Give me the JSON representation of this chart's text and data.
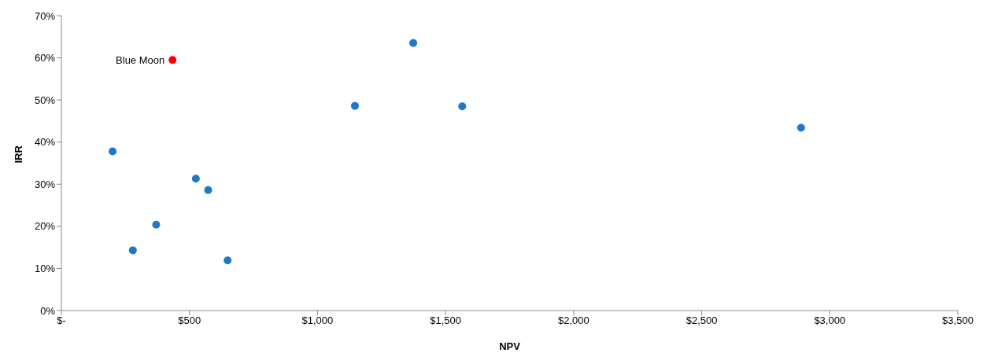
{
  "chart_data": {
    "type": "scatter",
    "xlabel": "NPV",
    "ylabel": "IRR",
    "x": [
      200,
      279,
      370,
      434,
      525,
      573,
      649,
      1146,
      1374,
      1565,
      2888
    ],
    "values": [
      37.8,
      14.3,
      20.4,
      59.5,
      31.3,
      28.6,
      11.9,
      48.6,
      63.5,
      48.5,
      43.4
    ],
    "colors": [
      "#1f77c8",
      "#1f77c8",
      "#1f77c8",
      "#ff0000",
      "#1f77c8",
      "#1f77c8",
      "#1f77c8",
      "#1f77c8",
      "#1f77c8",
      "#1f77c8",
      "#1f77c8"
    ],
    "xlim": [
      0,
      3500
    ],
    "xticks": [
      {
        "value": 0,
        "label": "$-"
      },
      {
        "value": 500,
        "label": "$500"
      },
      {
        "value": 1000,
        "label": "$1,000"
      },
      {
        "value": 1500,
        "label": "$1,500"
      },
      {
        "value": 2000,
        "label": "$2,000"
      },
      {
        "value": 2500,
        "label": "$2,500"
      },
      {
        "value": 3000,
        "label": "$3,000"
      },
      {
        "value": 3500,
        "label": "$3,500"
      }
    ],
    "ylim": [
      0,
      70
    ],
    "yticks": [
      {
        "value": 0,
        "label": "0%"
      },
      {
        "value": 10,
        "label": "10%"
      },
      {
        "value": 20,
        "label": "20%"
      },
      {
        "value": 30,
        "label": "30%"
      },
      {
        "value": 40,
        "label": "40%"
      },
      {
        "value": 50,
        "label": "50%"
      },
      {
        "value": 60,
        "label": "60%"
      },
      {
        "value": 70,
        "label": "70%"
      }
    ],
    "annotations": [
      {
        "text": "Blue Moon",
        "x": 434,
        "y": 59.5
      }
    ],
    "marker": "circle",
    "grid": false,
    "legend": false
  }
}
